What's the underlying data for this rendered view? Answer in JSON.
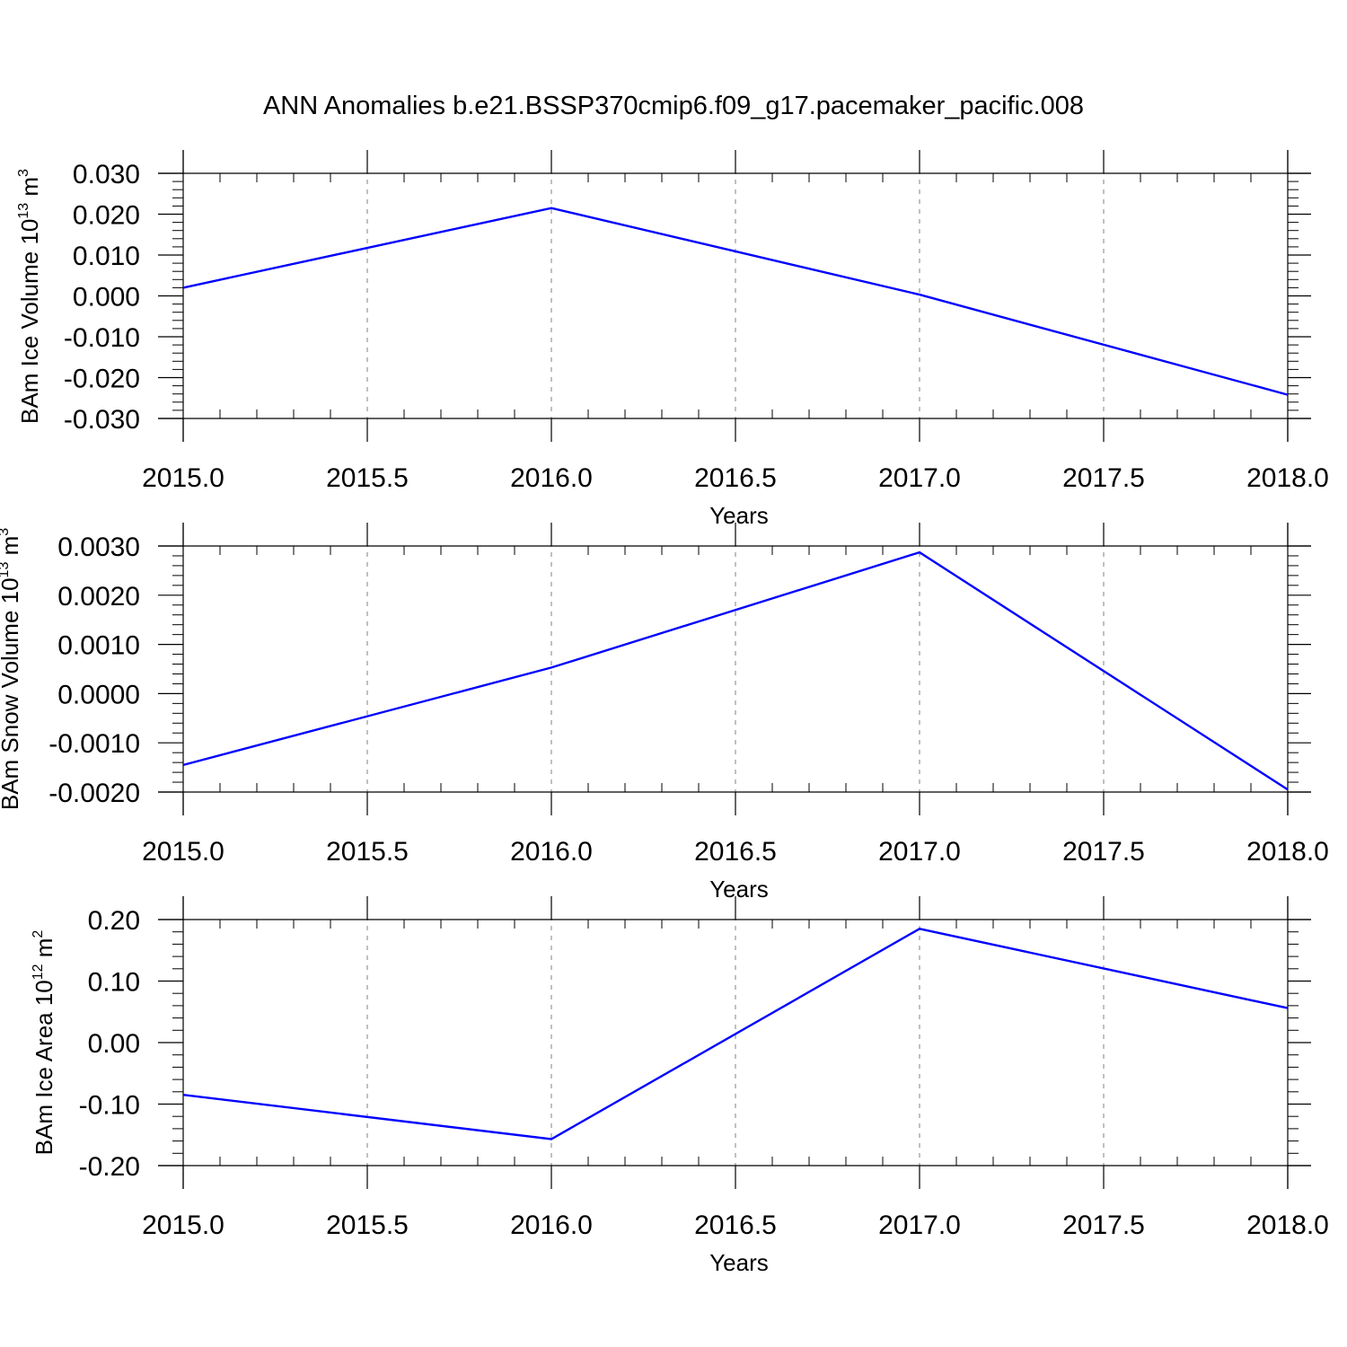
{
  "title": "ANN Anomalies b.e21.BSSP370cmip6.f09_g17.pacemaker_pacific.008",
  "colors": {
    "line": "#0000ff",
    "axis": "#000000",
    "grid": "#808080"
  },
  "chart_data": [
    {
      "type": "line",
      "xlabel": "Years",
      "ylabel": "BAm Ice Volume 10",
      "ylabel_exp": "13",
      "ylabel_unit": " m",
      "ylabel_unit_exp": "3",
      "xlim": [
        2015,
        2018
      ],
      "ylim": [
        -0.03,
        0.03
      ],
      "xticks": [
        2015.0,
        2015.5,
        2016.0,
        2016.5,
        2017.0,
        2017.5,
        2018.0
      ],
      "xtick_labels": [
        "2015.0",
        "2015.5",
        "2016.0",
        "2016.5",
        "2017.0",
        "2017.5",
        "2018.0"
      ],
      "yticks": [
        0.03,
        0.02,
        0.01,
        0.0,
        -0.01,
        -0.02,
        -0.03
      ],
      "ytick_labels": [
        "0.030",
        "0.020",
        "0.010",
        "0.000",
        "-0.010",
        "-0.020",
        "-0.030"
      ],
      "grid_x": true,
      "series": [
        {
          "x": [
            2015,
            2016,
            2017,
            2018
          ],
          "y": [
            0.002,
            0.0215,
            0.0003,
            -0.0242
          ]
        }
      ]
    },
    {
      "type": "line",
      "xlabel": "Years",
      "ylabel": "BAm Snow Volume 10",
      "ylabel_exp": "13",
      "ylabel_unit": " m",
      "ylabel_unit_exp": "3",
      "xlim": [
        2015,
        2018
      ],
      "ylim": [
        -0.002,
        0.003
      ],
      "xticks": [
        2015.0,
        2015.5,
        2016.0,
        2016.5,
        2017.0,
        2017.5,
        2018.0
      ],
      "xtick_labels": [
        "2015.0",
        "2015.5",
        "2016.0",
        "2016.5",
        "2017.0",
        "2017.5",
        "2018.0"
      ],
      "yticks": [
        0.003,
        0.002,
        0.001,
        0.0,
        -0.001,
        -0.002
      ],
      "ytick_labels": [
        "0.0030",
        "0.0020",
        "0.0010",
        "0.0000",
        "-0.0010",
        "-0.0020"
      ],
      "grid_x": true,
      "series": [
        {
          "x": [
            2015,
            2016,
            2017,
            2018
          ],
          "y": [
            -0.00145,
            0.00053,
            0.00287,
            -0.00195
          ]
        }
      ]
    },
    {
      "type": "line",
      "xlabel": "Years",
      "ylabel": "BAm Ice Area 10",
      "ylabel_exp": "12",
      "ylabel_unit": " m",
      "ylabel_unit_exp": "2",
      "xlim": [
        2015,
        2018
      ],
      "ylim": [
        -0.2,
        0.2
      ],
      "xticks": [
        2015.0,
        2015.5,
        2016.0,
        2016.5,
        2017.0,
        2017.5,
        2018.0
      ],
      "xtick_labels": [
        "2015.0",
        "2015.5",
        "2016.0",
        "2016.5",
        "2017.0",
        "2017.5",
        "2018.0"
      ],
      "yticks": [
        0.2,
        0.1,
        0.0,
        -0.1,
        -0.2
      ],
      "ytick_labels": [
        "0.20",
        "0.10",
        "0.00",
        "-0.10",
        "-0.20"
      ],
      "grid_x": true,
      "series": [
        {
          "x": [
            2015,
            2016,
            2017,
            2018
          ],
          "y": [
            -0.085,
            -0.157,
            0.185,
            0.056
          ]
        }
      ]
    }
  ]
}
